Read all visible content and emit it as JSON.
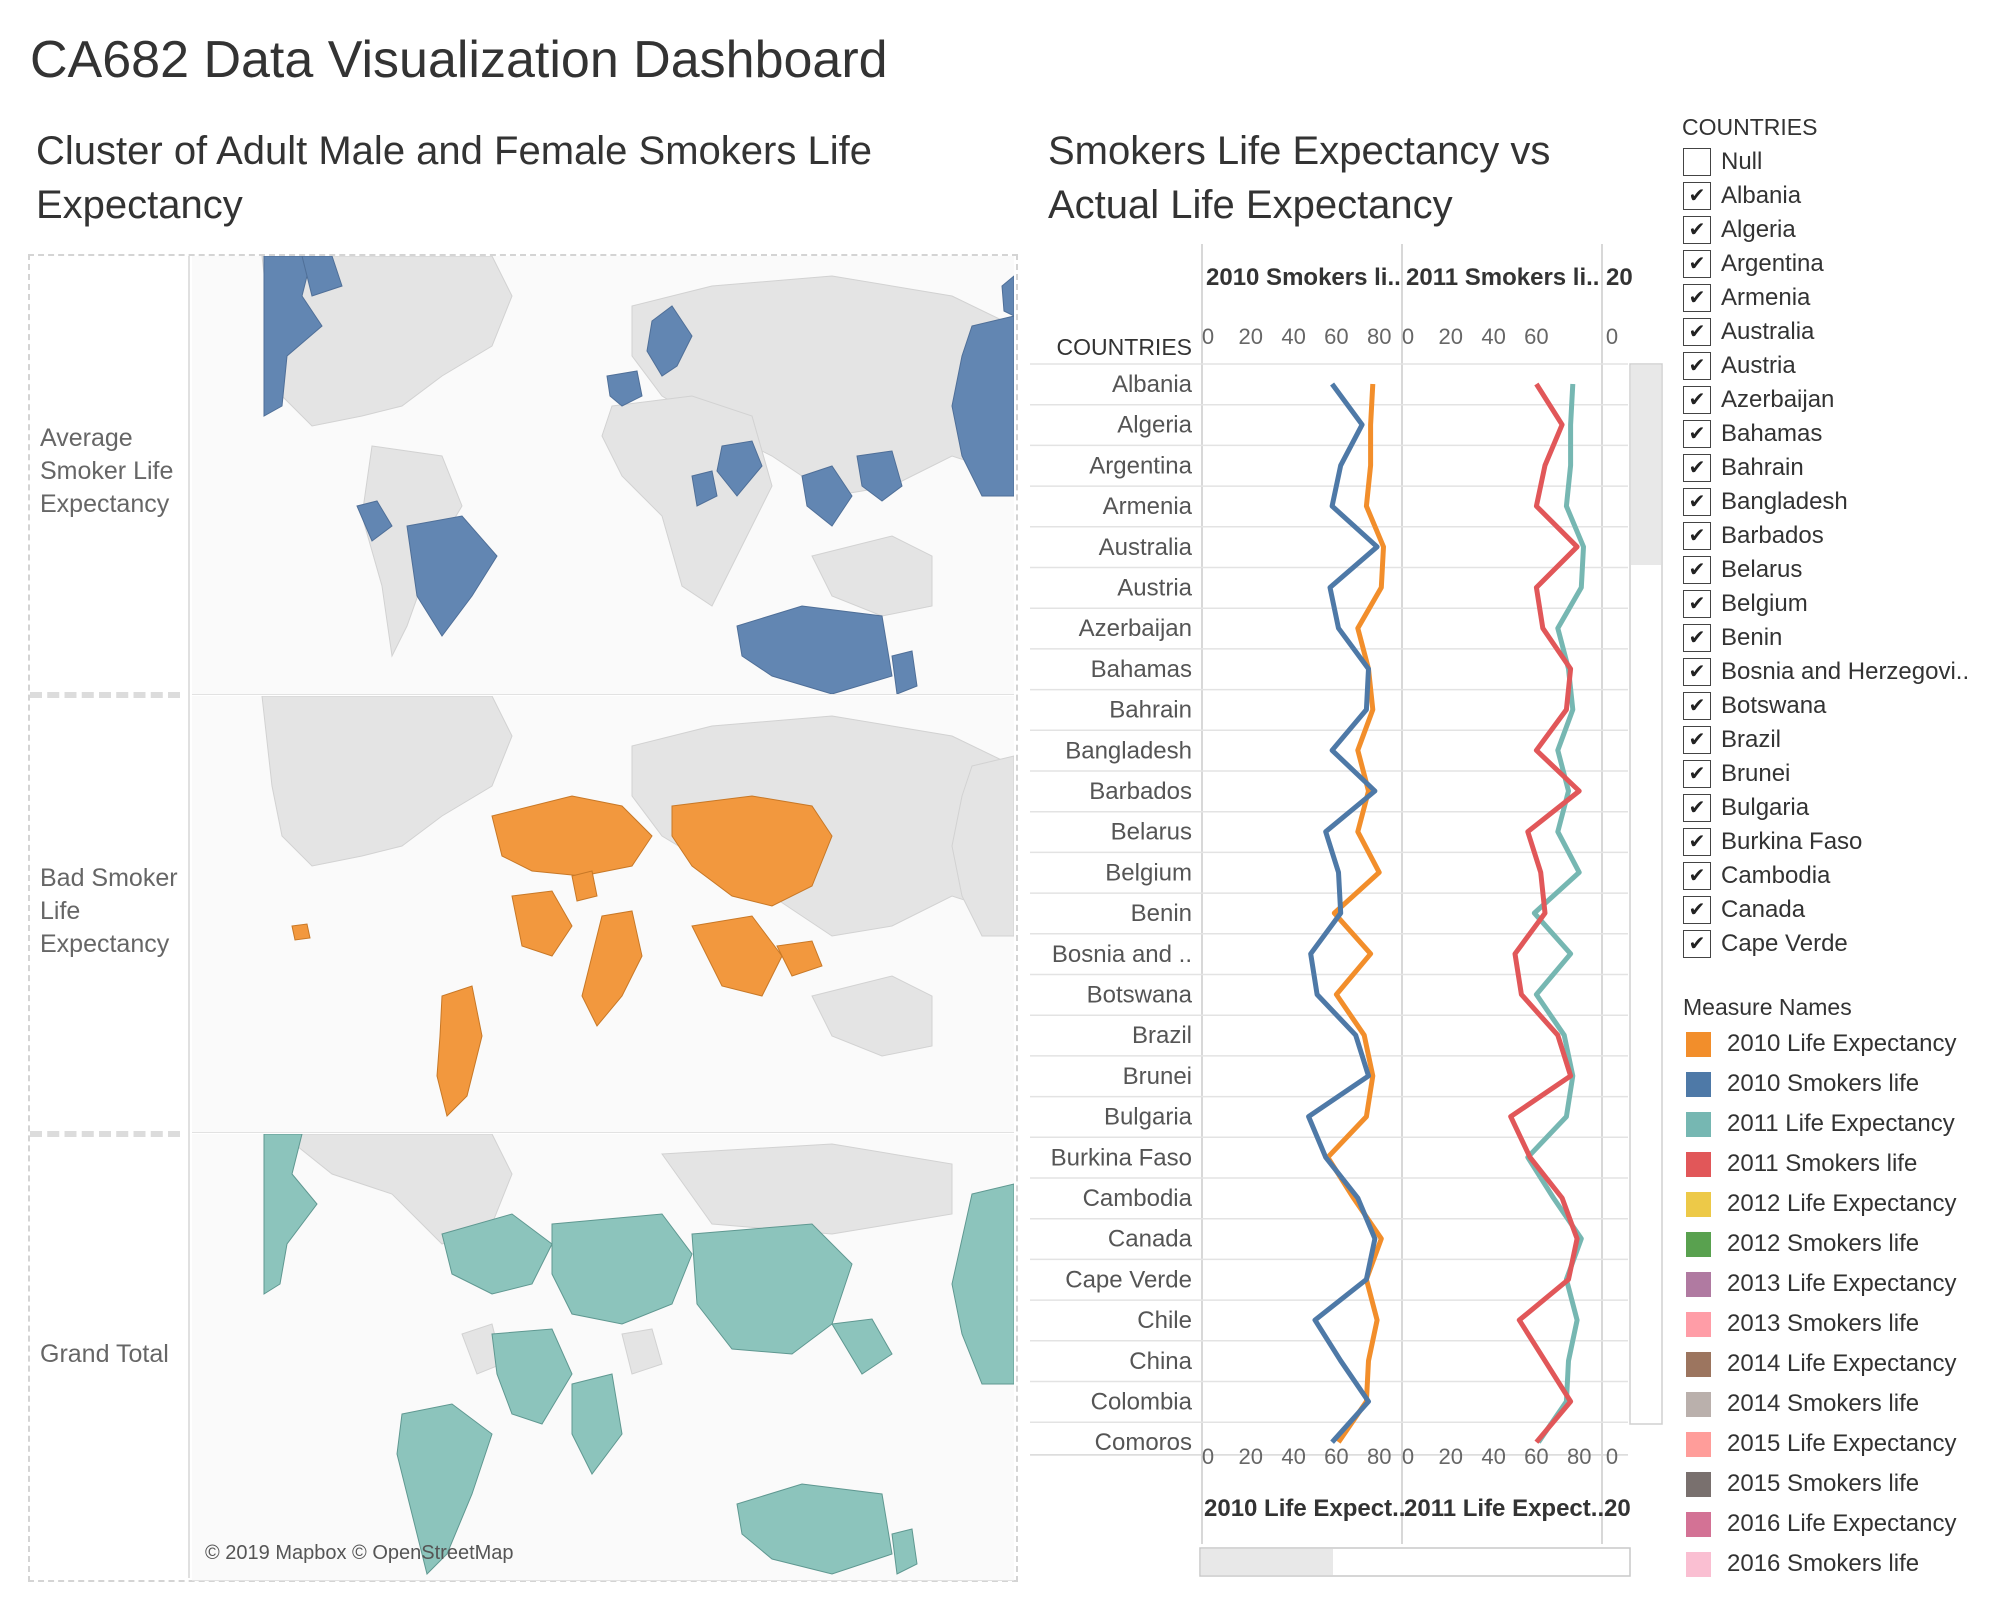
{
  "dashboard": {
    "title": "CA682 Data Visualization Dashboard"
  },
  "map_panel": {
    "title": "Cluster of Adult Male and Female Smokers Life Expectancy",
    "rows": [
      {
        "label": "Average Smoker Life Expectancy",
        "color": "#6286b2"
      },
      {
        "label": "Bad Smoker Life Expectancy",
        "color": "#f2983e"
      },
      {
        "label": "Grand Total",
        "color": "#8cc4bc"
      }
    ],
    "credit": "© 2019 Mapbox © OpenStreetMap"
  },
  "line_panel": {
    "title": "Smokers Life Expectancy vs Actual Life Expectancy",
    "countries_header": "COUNTRIES",
    "top_axis_titles": [
      "2010 Smokers li..",
      "2011 Smokers li..",
      "20"
    ],
    "bottom_axis_titles": [
      "2010 Life Expect..",
      "2011 Life Expect..",
      "20"
    ],
    "ticks": [
      "0",
      "20",
      "40",
      "60",
      "80"
    ]
  },
  "chart_data": {
    "type": "line",
    "orientation": "vertical",
    "categories": [
      "Albania",
      "Algeria",
      "Argentina",
      "Armenia",
      "Australia",
      "Austria",
      "Azerbaijan",
      "Bahamas",
      "Bahrain",
      "Bangladesh",
      "Barbados",
      "Belarus",
      "Belgium",
      "Benin",
      "Bosnia and ..",
      "Botswana",
      "Brazil",
      "Brunei",
      "Bulgaria",
      "Burkina Faso",
      "Cambodia",
      "Canada",
      "Cape Verde",
      "Chile",
      "China",
      "Colombia",
      "Comoros"
    ],
    "panels": [
      {
        "top_axis": "2010 Smokers li..",
        "bottom_axis": "2010 Life Expect..",
        "series": [
          {
            "name": "2010 Life Expectancy",
            "color": "#f28e2b",
            "values": [
              77,
              76,
              76,
              74,
              82,
              81,
              70,
              75,
              77,
              70,
              75,
              70,
              80,
              59,
              76,
              60,
              73,
              77,
              74,
              56,
              68,
              81,
              74,
              79,
              75,
              74,
              61
            ]
          },
          {
            "name": "2010 Smokers life",
            "color": "#4e79a7",
            "values": [
              58,
              72,
              62,
              58,
              79,
              57,
              61,
              75,
              74,
              58,
              78,
              55,
              61,
              62,
              48,
              51,
              69,
              75,
              47,
              55,
              70,
              78,
              74,
              50,
              62,
              75,
              58
            ]
          }
        ]
      },
      {
        "top_axis": "2011 Smokers li..",
        "bottom_axis": "2011 Life Expect..",
        "series": [
          {
            "name": "2011 Life Expectancy",
            "color": "#76b7b2",
            "values": [
              77,
              76,
              76,
              74,
              82,
              81,
              70,
              75,
              77,
              70,
              75,
              70,
              80,
              59,
              76,
              60,
              73,
              77,
              74,
              56,
              68,
              81,
              74,
              79,
              75,
              74,
              61
            ]
          },
          {
            "name": "2011 Smokers life",
            "color": "#e15759",
            "values": [
              60,
              72,
              64,
              60,
              79,
              60,
              63,
              76,
              74,
              60,
              80,
              56,
              62,
              64,
              50,
              53,
              70,
              76,
              48,
              57,
              72,
              79,
              75,
              52,
              64,
              76,
              60
            ]
          }
        ]
      }
    ],
    "xlim": [
      0,
      85
    ]
  },
  "filter": {
    "title": "COUNTRIES",
    "items": [
      {
        "label": "Null",
        "checked": false
      },
      {
        "label": "Albania",
        "checked": true
      },
      {
        "label": "Algeria",
        "checked": true
      },
      {
        "label": "Argentina",
        "checked": true
      },
      {
        "label": "Armenia",
        "checked": true
      },
      {
        "label": "Australia",
        "checked": true
      },
      {
        "label": "Austria",
        "checked": true
      },
      {
        "label": "Azerbaijan",
        "checked": true
      },
      {
        "label": "Bahamas",
        "checked": true
      },
      {
        "label": "Bahrain",
        "checked": true
      },
      {
        "label": "Bangladesh",
        "checked": true
      },
      {
        "label": "Barbados",
        "checked": true
      },
      {
        "label": "Belarus",
        "checked": true
      },
      {
        "label": "Belgium",
        "checked": true
      },
      {
        "label": "Benin",
        "checked": true
      },
      {
        "label": "Bosnia and Herzegovi..",
        "checked": true
      },
      {
        "label": "Botswana",
        "checked": true
      },
      {
        "label": "Brazil",
        "checked": true
      },
      {
        "label": "Brunei",
        "checked": true
      },
      {
        "label": "Bulgaria",
        "checked": true
      },
      {
        "label": "Burkina Faso",
        "checked": true
      },
      {
        "label": "Cambodia",
        "checked": true
      },
      {
        "label": "Canada",
        "checked": true
      },
      {
        "label": "Cape Verde",
        "checked": true
      }
    ]
  },
  "legend": {
    "title": "Measure Names",
    "items": [
      {
        "label": "2010 Life Expectancy",
        "color": "#f28e2b"
      },
      {
        "label": "2010 Smokers life",
        "color": "#4e79a7"
      },
      {
        "label": "2011 Life Expectancy",
        "color": "#76b7b2"
      },
      {
        "label": "2011 Smokers life",
        "color": "#e15759"
      },
      {
        "label": "2012 Life Expectancy",
        "color": "#edc948"
      },
      {
        "label": "2012 Smokers life",
        "color": "#59a14f"
      },
      {
        "label": "2013 Life Expectancy",
        "color": "#b07aa1"
      },
      {
        "label": "2013 Smokers life",
        "color": "#ff9da7"
      },
      {
        "label": "2014 Life Expectancy",
        "color": "#9c755f"
      },
      {
        "label": "2014 Smokers life",
        "color": "#bab0ac"
      },
      {
        "label": "2015 Life Expectancy",
        "color": "#ff9d9a"
      },
      {
        "label": "2015 Smokers life",
        "color": "#79706e"
      },
      {
        "label": "2016 Life Expectancy",
        "color": "#d37295"
      },
      {
        "label": "2016 Smokers life",
        "color": "#fabfd2"
      }
    ]
  }
}
